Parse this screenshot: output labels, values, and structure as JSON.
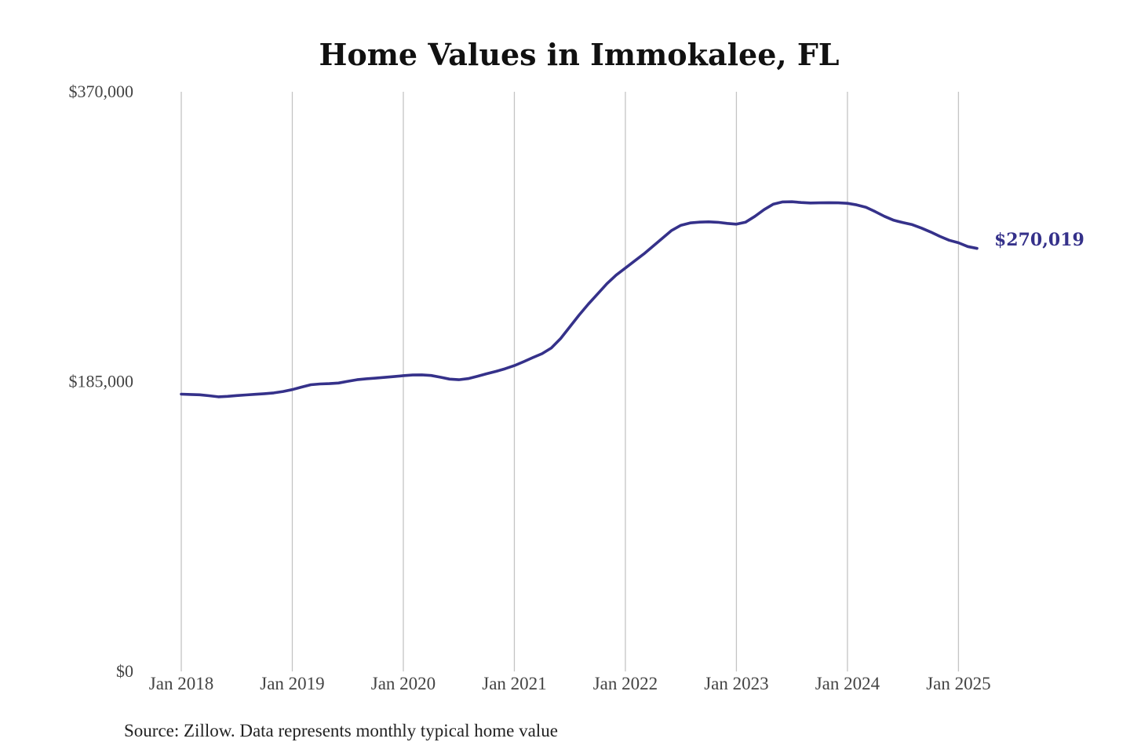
{
  "chart_data": {
    "type": "line",
    "title": "Home Values in Immokalee, FL",
    "source": "Source: Zillow. Data represents monthly typical home value",
    "ylim": [
      0,
      370000
    ],
    "yticks": [
      {
        "value": 0,
        "label": "$0"
      },
      {
        "value": 185000,
        "label": "$185,000"
      },
      {
        "value": 370000,
        "label": "$370,000"
      }
    ],
    "xlim": [
      "2018-01",
      "2025-03"
    ],
    "xticks": [
      {
        "value": "2018-01",
        "label": "Jan 2018"
      },
      {
        "value": "2019-01",
        "label": "Jan 2019"
      },
      {
        "value": "2020-01",
        "label": "Jan 2020"
      },
      {
        "value": "2021-01",
        "label": "Jan 2021"
      },
      {
        "value": "2022-01",
        "label": "Jan 2022"
      },
      {
        "value": "2023-01",
        "label": "Jan 2023"
      },
      {
        "value": "2024-01",
        "label": "Jan 2024"
      },
      {
        "value": "2025-01",
        "label": "Jan 2025"
      }
    ],
    "grid": {
      "vertical": true,
      "horizontal": false
    },
    "line_color": "#35318a",
    "grid_color": "#c4c4c4",
    "end_label": "$270,019",
    "series": [
      {
        "points": [
          [
            "2018-01",
            177000
          ],
          [
            "2018-02",
            176800
          ],
          [
            "2018-03",
            176600
          ],
          [
            "2018-04",
            176000
          ],
          [
            "2018-05",
            175300
          ],
          [
            "2018-06",
            175600
          ],
          [
            "2018-07",
            176100
          ],
          [
            "2018-08",
            176500
          ],
          [
            "2018-09",
            176900
          ],
          [
            "2018-10",
            177300
          ],
          [
            "2018-11",
            177800
          ],
          [
            "2018-12",
            178700
          ],
          [
            "2019-01",
            179900
          ],
          [
            "2019-02",
            181500
          ],
          [
            "2019-03",
            183000
          ],
          [
            "2019-04",
            183500
          ],
          [
            "2019-05",
            183700
          ],
          [
            "2019-06",
            184100
          ],
          [
            "2019-07",
            185200
          ],
          [
            "2019-08",
            186200
          ],
          [
            "2019-09",
            186800
          ],
          [
            "2019-10",
            187200
          ],
          [
            "2019-11",
            187700
          ],
          [
            "2019-12",
            188200
          ],
          [
            "2020-01",
            188800
          ],
          [
            "2020-02",
            189200
          ],
          [
            "2020-03",
            189300
          ],
          [
            "2020-04",
            188900
          ],
          [
            "2020-05",
            187800
          ],
          [
            "2020-06",
            186600
          ],
          [
            "2020-07",
            186200
          ],
          [
            "2020-08",
            186900
          ],
          [
            "2020-09",
            188400
          ],
          [
            "2020-10",
            190000
          ],
          [
            "2020-11",
            191500
          ],
          [
            "2020-12",
            193200
          ],
          [
            "2021-01",
            195200
          ],
          [
            "2021-02",
            197700
          ],
          [
            "2021-03",
            200300
          ],
          [
            "2021-04",
            202800
          ],
          [
            "2021-05",
            206500
          ],
          [
            "2021-06",
            212500
          ],
          [
            "2021-07",
            220000
          ],
          [
            "2021-08",
            227500
          ],
          [
            "2021-09",
            234500
          ],
          [
            "2021-10",
            241000
          ],
          [
            "2021-11",
            247500
          ],
          [
            "2021-12",
            253000
          ],
          [
            "2022-01",
            257500
          ],
          [
            "2022-02",
            262000
          ],
          [
            "2022-03",
            266500
          ],
          [
            "2022-04",
            271500
          ],
          [
            "2022-05",
            276500
          ],
          [
            "2022-06",
            281500
          ],
          [
            "2022-07",
            284800
          ],
          [
            "2022-08",
            286300
          ],
          [
            "2022-09",
            286800
          ],
          [
            "2022-10",
            287000
          ],
          [
            "2022-11",
            286700
          ],
          [
            "2022-12",
            286000
          ],
          [
            "2023-01",
            285500
          ],
          [
            "2023-02",
            286800
          ],
          [
            "2023-03",
            290500
          ],
          [
            "2023-04",
            294800
          ],
          [
            "2023-05",
            298300
          ],
          [
            "2023-06",
            299700
          ],
          [
            "2023-07",
            299800
          ],
          [
            "2023-08",
            299300
          ],
          [
            "2023-09",
            299000
          ],
          [
            "2023-10",
            299100
          ],
          [
            "2023-11",
            299200
          ],
          [
            "2023-12",
            299100
          ],
          [
            "2024-01",
            298800
          ],
          [
            "2024-02",
            297800
          ],
          [
            "2024-03",
            296300
          ],
          [
            "2024-04",
            293500
          ],
          [
            "2024-05",
            290500
          ],
          [
            "2024-06",
            288000
          ],
          [
            "2024-07",
            286500
          ],
          [
            "2024-08",
            285200
          ],
          [
            "2024-09",
            283000
          ],
          [
            "2024-10",
            280500
          ],
          [
            "2024-11",
            277700
          ],
          [
            "2024-12",
            275200
          ],
          [
            "2025-01",
            273600
          ],
          [
            "2025-02",
            271200
          ],
          [
            "2025-03",
            270019
          ]
        ]
      }
    ]
  }
}
